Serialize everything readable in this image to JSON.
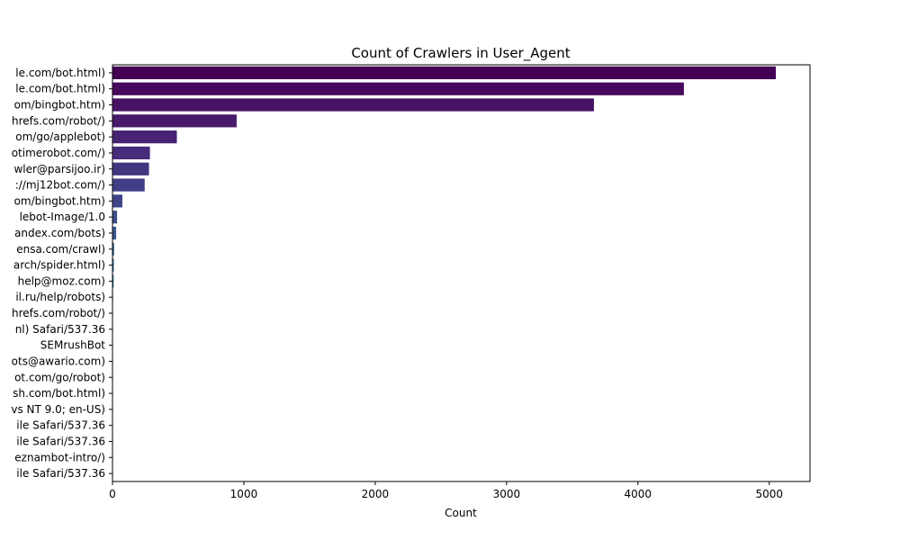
{
  "chart_data": {
    "type": "bar",
    "orientation": "horizontal",
    "title": "Count of Crawlers in User_Agent",
    "xlabel": "Count",
    "ylabel": "",
    "xlim": [
      0,
      5310
    ],
    "xticks": [
      0,
      1000,
      2000,
      3000,
      4000,
      5000
    ],
    "grid": false,
    "palette": "viridis",
    "categories": [
      "le.com/bot.html)",
      "le.com/bot.html)",
      "om/bingbot.htm)",
      "hrefs.com/robot/)",
      "om/go/applebot)",
      "otimerobot.com/)",
      "wler@parsijoo.ir)",
      "://mj12bot.com/)",
      "om/bingbot.htm)",
      "lebot-Image/1.0",
      "andex.com/bots)",
      "ensa.com/crawl)",
      "arch/spider.html)",
      "help@moz.com)",
      "il.ru/help/robots)",
      "hrefs.com/robot/)",
      "nl) Safari/537.36",
      "SEMrushBot",
      "ots@awario.com)",
      "ot.com/go/robot)",
      "sh.com/bot.html)",
      "vs NT 9.0; en-US)",
      "ile Safari/537.36",
      "ile Safari/537.36",
      "eznambot-intro/)",
      "ile Safari/537.36"
    ],
    "values": [
      5050,
      4350,
      3665,
      945,
      490,
      285,
      278,
      245,
      75,
      35,
      28,
      12,
      10,
      9,
      4,
      3,
      3,
      2,
      2,
      2,
      2,
      1,
      1,
      1,
      1,
      1
    ],
    "colors": [
      "#440154",
      "#46095c",
      "#471264",
      "#481a6c",
      "#472374",
      "#462c7b",
      "#443580",
      "#413e85",
      "#3e4688",
      "#3b4f8b",
      "#37578d",
      "#345f8d",
      "#31668e",
      "#2e6e8e",
      "#2b758e",
      "#297c8e",
      "#26838e",
      "#248b8d",
      "#21918c",
      "#1f988b",
      "#1fa088",
      "#22a785",
      "#2aae80",
      "#35b779",
      "#43bf71",
      "#52c569"
    ]
  }
}
